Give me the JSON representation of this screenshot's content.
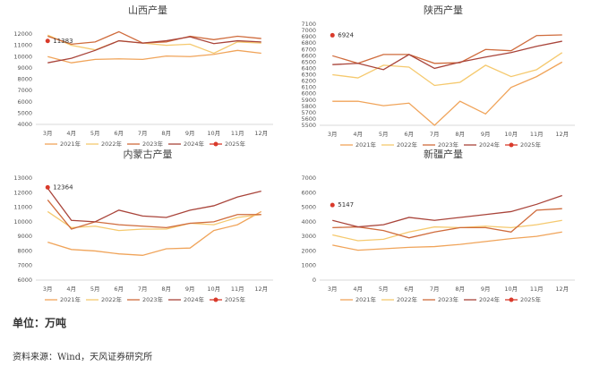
{
  "chart_data": [
    {
      "type": "line",
      "title": "山西产量",
      "categories": [
        "3月",
        "4月",
        "5月",
        "6月",
        "7月",
        "8月",
        "9月",
        "10月",
        "11月",
        "12月"
      ],
      "ylim": [
        4000,
        12000
      ],
      "yticks": [
        4000,
        5000,
        6000,
        7000,
        8000,
        9000,
        10000,
        11000,
        12000
      ],
      "series": [
        {
          "name": "2021年",
          "color": "#f0a45a",
          "values": [
            10000,
            9450,
            9750,
            9800,
            9750,
            10050,
            10000,
            10200,
            10550,
            10300
          ]
        },
        {
          "name": "2022年",
          "color": "#f5c96e",
          "values": [
            11900,
            11000,
            10600,
            11400,
            11200,
            11000,
            11100,
            10300,
            11300,
            11200
          ]
        },
        {
          "name": "2023年",
          "color": "#cf6b3c",
          "values": [
            11800,
            11100,
            11300,
            12200,
            11200,
            11300,
            11800,
            11500,
            11800,
            11600
          ]
        },
        {
          "name": "2024年",
          "color": "#a9443a",
          "values": [
            9450,
            9850,
            10550,
            11400,
            11200,
            11400,
            11750,
            11150,
            11400,
            11300
          ]
        },
        {
          "name": "2025年",
          "color": "#d93a2b",
          "marker": true,
          "values": [
            11383,
            null,
            null,
            null,
            null,
            null,
            null,
            null,
            null,
            null
          ]
        }
      ]
    },
    {
      "type": "line",
      "title": "陕西产量",
      "categories": [
        "3月",
        "4月",
        "5月",
        "6月",
        "7月",
        "8月",
        "9月",
        "10月",
        "11月",
        "12月"
      ],
      "ylim": [
        5500,
        7100
      ],
      "yticks": [
        5500,
        5600,
        5700,
        5800,
        5900,
        6000,
        6100,
        6200,
        6300,
        6400,
        6500,
        6600,
        6700,
        6800,
        6900,
        7000,
        7100
      ],
      "series": [
        {
          "name": "2021年",
          "color": "#f0a45a",
          "values": [
            5880,
            5880,
            5810,
            5850,
            5500,
            5880,
            5680,
            6100,
            6270,
            6500
          ]
        },
        {
          "name": "2022年",
          "color": "#f5c96e",
          "values": [
            6300,
            6250,
            6450,
            6420,
            6130,
            6180,
            6450,
            6270,
            6380,
            6650
          ]
        },
        {
          "name": "2023年",
          "color": "#cf6b3c",
          "values": [
            6600,
            6480,
            6620,
            6620,
            6480,
            6490,
            6700,
            6680,
            6920,
            6930
          ]
        },
        {
          "name": "2024年",
          "color": "#a9443a",
          "values": [
            6460,
            6480,
            6380,
            6620,
            6400,
            6500,
            6580,
            6650,
            6750,
            6830
          ]
        },
        {
          "name": "2025年",
          "color": "#d93a2b",
          "marker": true,
          "values": [
            6924,
            null,
            null,
            null,
            null,
            null,
            null,
            null,
            null,
            null
          ]
        }
      ]
    },
    {
      "type": "line",
      "title": "内蒙古产量",
      "categories": [
        "3月",
        "4月",
        "5月",
        "6月",
        "7月",
        "8月",
        "9月",
        "10月",
        "11月",
        "12月"
      ],
      "ylim": [
        6000,
        13000
      ],
      "yticks": [
        6000,
        7000,
        8000,
        9000,
        10000,
        11000,
        12000,
        13000
      ],
      "series": [
        {
          "name": "2021年",
          "color": "#f0a45a",
          "values": [
            8600,
            8100,
            8000,
            7800,
            7700,
            8150,
            8200,
            9400,
            9800,
            10700
          ]
        },
        {
          "name": "2022年",
          "color": "#f5c96e",
          "values": [
            10700,
            9600,
            9700,
            9400,
            9500,
            9500,
            9900,
            9800,
            10300,
            10500
          ]
        },
        {
          "name": "2023年",
          "color": "#cf6b3c",
          "values": [
            11500,
            9500,
            10000,
            9800,
            9700,
            9600,
            9900,
            10000,
            10500,
            10500
          ]
        },
        {
          "name": "2024年",
          "color": "#a9443a",
          "values": [
            12300,
            10100,
            10000,
            10800,
            10400,
            10300,
            10800,
            11100,
            11700,
            12100
          ]
        },
        {
          "name": "2025年",
          "color": "#d93a2b",
          "marker": true,
          "values": [
            12364,
            null,
            null,
            null,
            null,
            null,
            null,
            null,
            null,
            null
          ]
        }
      ]
    },
    {
      "type": "line",
      "title": "新疆产量",
      "categories": [
        "3月",
        "4月",
        "5月",
        "6月",
        "7月",
        "8月",
        "9月",
        "10月",
        "11月",
        "12月"
      ],
      "ylim": [
        0,
        7000
      ],
      "yticks": [
        0,
        1000,
        2000,
        3000,
        4000,
        5000,
        6000,
        7000
      ],
      "series": [
        {
          "name": "2021年",
          "color": "#f0a45a",
          "values": [
            2400,
            2050,
            2150,
            2250,
            2300,
            2450,
            2650,
            2850,
            3000,
            3300
          ]
        },
        {
          "name": "2022年",
          "color": "#f5c96e",
          "values": [
            3100,
            2700,
            2800,
            3300,
            3650,
            3600,
            3700,
            3600,
            3800,
            4100
          ]
        },
        {
          "name": "2023年",
          "color": "#cf6b3c",
          "values": [
            3600,
            3650,
            3400,
            2900,
            3300,
            3600,
            3600,
            3300,
            4800,
            4900
          ]
        },
        {
          "name": "2024年",
          "color": "#a9443a",
          "values": [
            4100,
            3650,
            3800,
            4300,
            4100,
            4300,
            4500,
            4700,
            5200,
            5800
          ]
        },
        {
          "name": "2025年",
          "color": "#d93a2b",
          "marker": true,
          "values": [
            5147,
            null,
            null,
            null,
            null,
            null,
            null,
            null,
            null,
            null
          ]
        }
      ]
    }
  ],
  "notes": {
    "unit": "单位：万吨",
    "source": "资料来源：Wind，天风证券研究所"
  }
}
